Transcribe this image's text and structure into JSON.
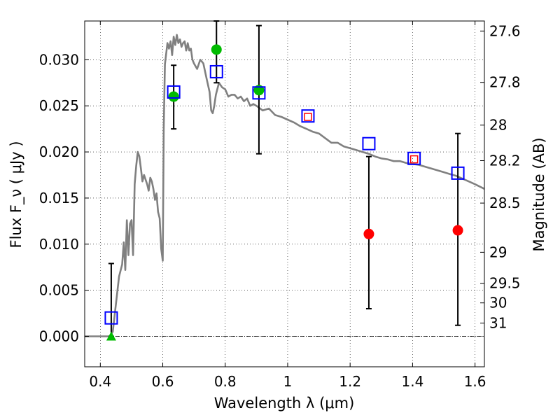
{
  "chart_data": {
    "type": "scatter",
    "xlabel": "Wavelength  λ (μm)",
    "ylabel": "Flux  F_ν  ( μJy )",
    "y2label": "Magnitude (AB)",
    "xlim": [
      0.35,
      1.63
    ],
    "ylim": [
      -0.0033,
      0.0342
    ],
    "x_ticks": [
      0.4,
      0.6,
      0.8,
      1.0,
      1.2,
      1.4,
      1.6
    ],
    "x_tick_labels": [
      "0.4",
      "0.6",
      "0.8",
      "1",
      "1.2",
      "1.4",
      "1.6"
    ],
    "y_ticks": [
      0.0,
      0.005,
      0.01,
      0.015,
      0.02,
      0.025,
      0.03
    ],
    "y_tick_labels": [
      "0.000",
      "0.005",
      "0.010",
      "0.015",
      "0.020",
      "0.025",
      "0.030"
    ],
    "y2_ticks": [
      27.6,
      27.8,
      28,
      28.2,
      28.5,
      29,
      29.5,
      30,
      31
    ],
    "y2_tick_labels": [
      "27.6",
      "27.8",
      "28",
      "28.2",
      "28.5",
      "29",
      "29.5",
      "30",
      "31"
    ],
    "grid": true,
    "template_sed": {
      "color": "#808080",
      "x": [
        0.35,
        0.43,
        0.44,
        0.45,
        0.46,
        0.47,
        0.475,
        0.48,
        0.485,
        0.49,
        0.495,
        0.5,
        0.505,
        0.51,
        0.515,
        0.52,
        0.525,
        0.53,
        0.535,
        0.54,
        0.545,
        0.55,
        0.555,
        0.56,
        0.565,
        0.57,
        0.575,
        0.58,
        0.585,
        0.59,
        0.595,
        0.6,
        0.603,
        0.607,
        0.615,
        0.62,
        0.625,
        0.63,
        0.635,
        0.64,
        0.645,
        0.65,
        0.655,
        0.66,
        0.665,
        0.67,
        0.675,
        0.68,
        0.685,
        0.69,
        0.695,
        0.7,
        0.71,
        0.72,
        0.73,
        0.74,
        0.75,
        0.755,
        0.76,
        0.765,
        0.77,
        0.78,
        0.79,
        0.8,
        0.81,
        0.82,
        0.83,
        0.84,
        0.85,
        0.86,
        0.87,
        0.88,
        0.89,
        0.9,
        0.92,
        0.94,
        0.96,
        0.98,
        1.0,
        1.02,
        1.04,
        1.06,
        1.08,
        1.1,
        1.12,
        1.14,
        1.16,
        1.18,
        1.2,
        1.22,
        1.24,
        1.26,
        1.28,
        1.3,
        1.32,
        1.34,
        1.36,
        1.38,
        1.4,
        1.42,
        1.44,
        1.46,
        1.48,
        1.5,
        1.52,
        1.54,
        1.56,
        1.58,
        1.6,
        1.63
      ],
      "y": [
        0.0,
        0.0,
        0.0005,
        0.0035,
        0.0065,
        0.0078,
        0.0102,
        0.0072,
        0.0126,
        0.0088,
        0.0122,
        0.0126,
        0.0088,
        0.0165,
        0.0185,
        0.02,
        0.0195,
        0.0182,
        0.0168,
        0.0175,
        0.017,
        0.0165,
        0.0158,
        0.0172,
        0.0168,
        0.016,
        0.0148,
        0.0155,
        0.0135,
        0.0128,
        0.0095,
        0.0082,
        0.0225,
        0.0295,
        0.0318,
        0.0312,
        0.032,
        0.0305,
        0.0325,
        0.0316,
        0.0327,
        0.0318,
        0.0322,
        0.0314,
        0.0318,
        0.032,
        0.031,
        0.0318,
        0.031,
        0.0312,
        0.03,
        0.0296,
        0.029,
        0.03,
        0.0296,
        0.028,
        0.0265,
        0.0245,
        0.0242,
        0.025,
        0.0262,
        0.0275,
        0.027,
        0.0268,
        0.026,
        0.0262,
        0.0262,
        0.0258,
        0.026,
        0.0255,
        0.0258,
        0.025,
        0.0252,
        0.025,
        0.0245,
        0.0247,
        0.024,
        0.0238,
        0.0235,
        0.0232,
        0.0228,
        0.0225,
        0.0222,
        0.022,
        0.0215,
        0.021,
        0.021,
        0.0206,
        0.0204,
        0.0202,
        0.02,
        0.0198,
        0.0195,
        0.0193,
        0.0192,
        0.019,
        0.019,
        0.0188,
        0.0187,
        0.0186,
        0.0184,
        0.0182,
        0.018,
        0.0178,
        0.0176,
        0.0174,
        0.0171,
        0.0168,
        0.0165,
        0.016
      ]
    },
    "errorbars": [
      {
        "x": 0.435,
        "ylow": 0.0,
        "yhigh": 0.0079
      },
      {
        "x": 0.635,
        "ylow": 0.0225,
        "yhigh": 0.0294
      },
      {
        "x": 0.772,
        "ylow": 0.0275,
        "yhigh": 0.0342
      },
      {
        "x": 0.908,
        "ylow": 0.0198,
        "yhigh": 0.0337
      },
      {
        "x": 1.26,
        "ylow": 0.003,
        "yhigh": 0.0195
      },
      {
        "x": 1.545,
        "ylow": 0.0012,
        "yhigh": 0.022
      }
    ],
    "model_points": {
      "color": "#0000ff",
      "marker": "square-open",
      "x": [
        0.435,
        0.635,
        0.772,
        0.908,
        1.065,
        1.26,
        1.405,
        1.545
      ],
      "y": [
        0.002,
        0.0265,
        0.0287,
        0.0264,
        0.0239,
        0.0209,
        0.0193,
        0.0177
      ]
    },
    "small_red_squares": {
      "color": "#ff0000",
      "marker": "square-open-small",
      "x": [
        1.065,
        1.405
      ],
      "y": [
        0.0238,
        0.0192
      ]
    },
    "green_points": {
      "color": "#00bb00",
      "marker": "circle",
      "x": [
        0.635,
        0.772,
        0.908
      ],
      "y": [
        0.026,
        0.0311,
        0.0267
      ]
    },
    "red_points": {
      "color": "#ff0000",
      "marker": "circle",
      "x": [
        1.26,
        1.545
      ],
      "y": [
        0.0111,
        0.0115
      ]
    },
    "upper_limits": {
      "color": "#00bb00",
      "marker": "triangle-up",
      "x": [
        0.435
      ],
      "y": [
        0.0
      ]
    }
  }
}
